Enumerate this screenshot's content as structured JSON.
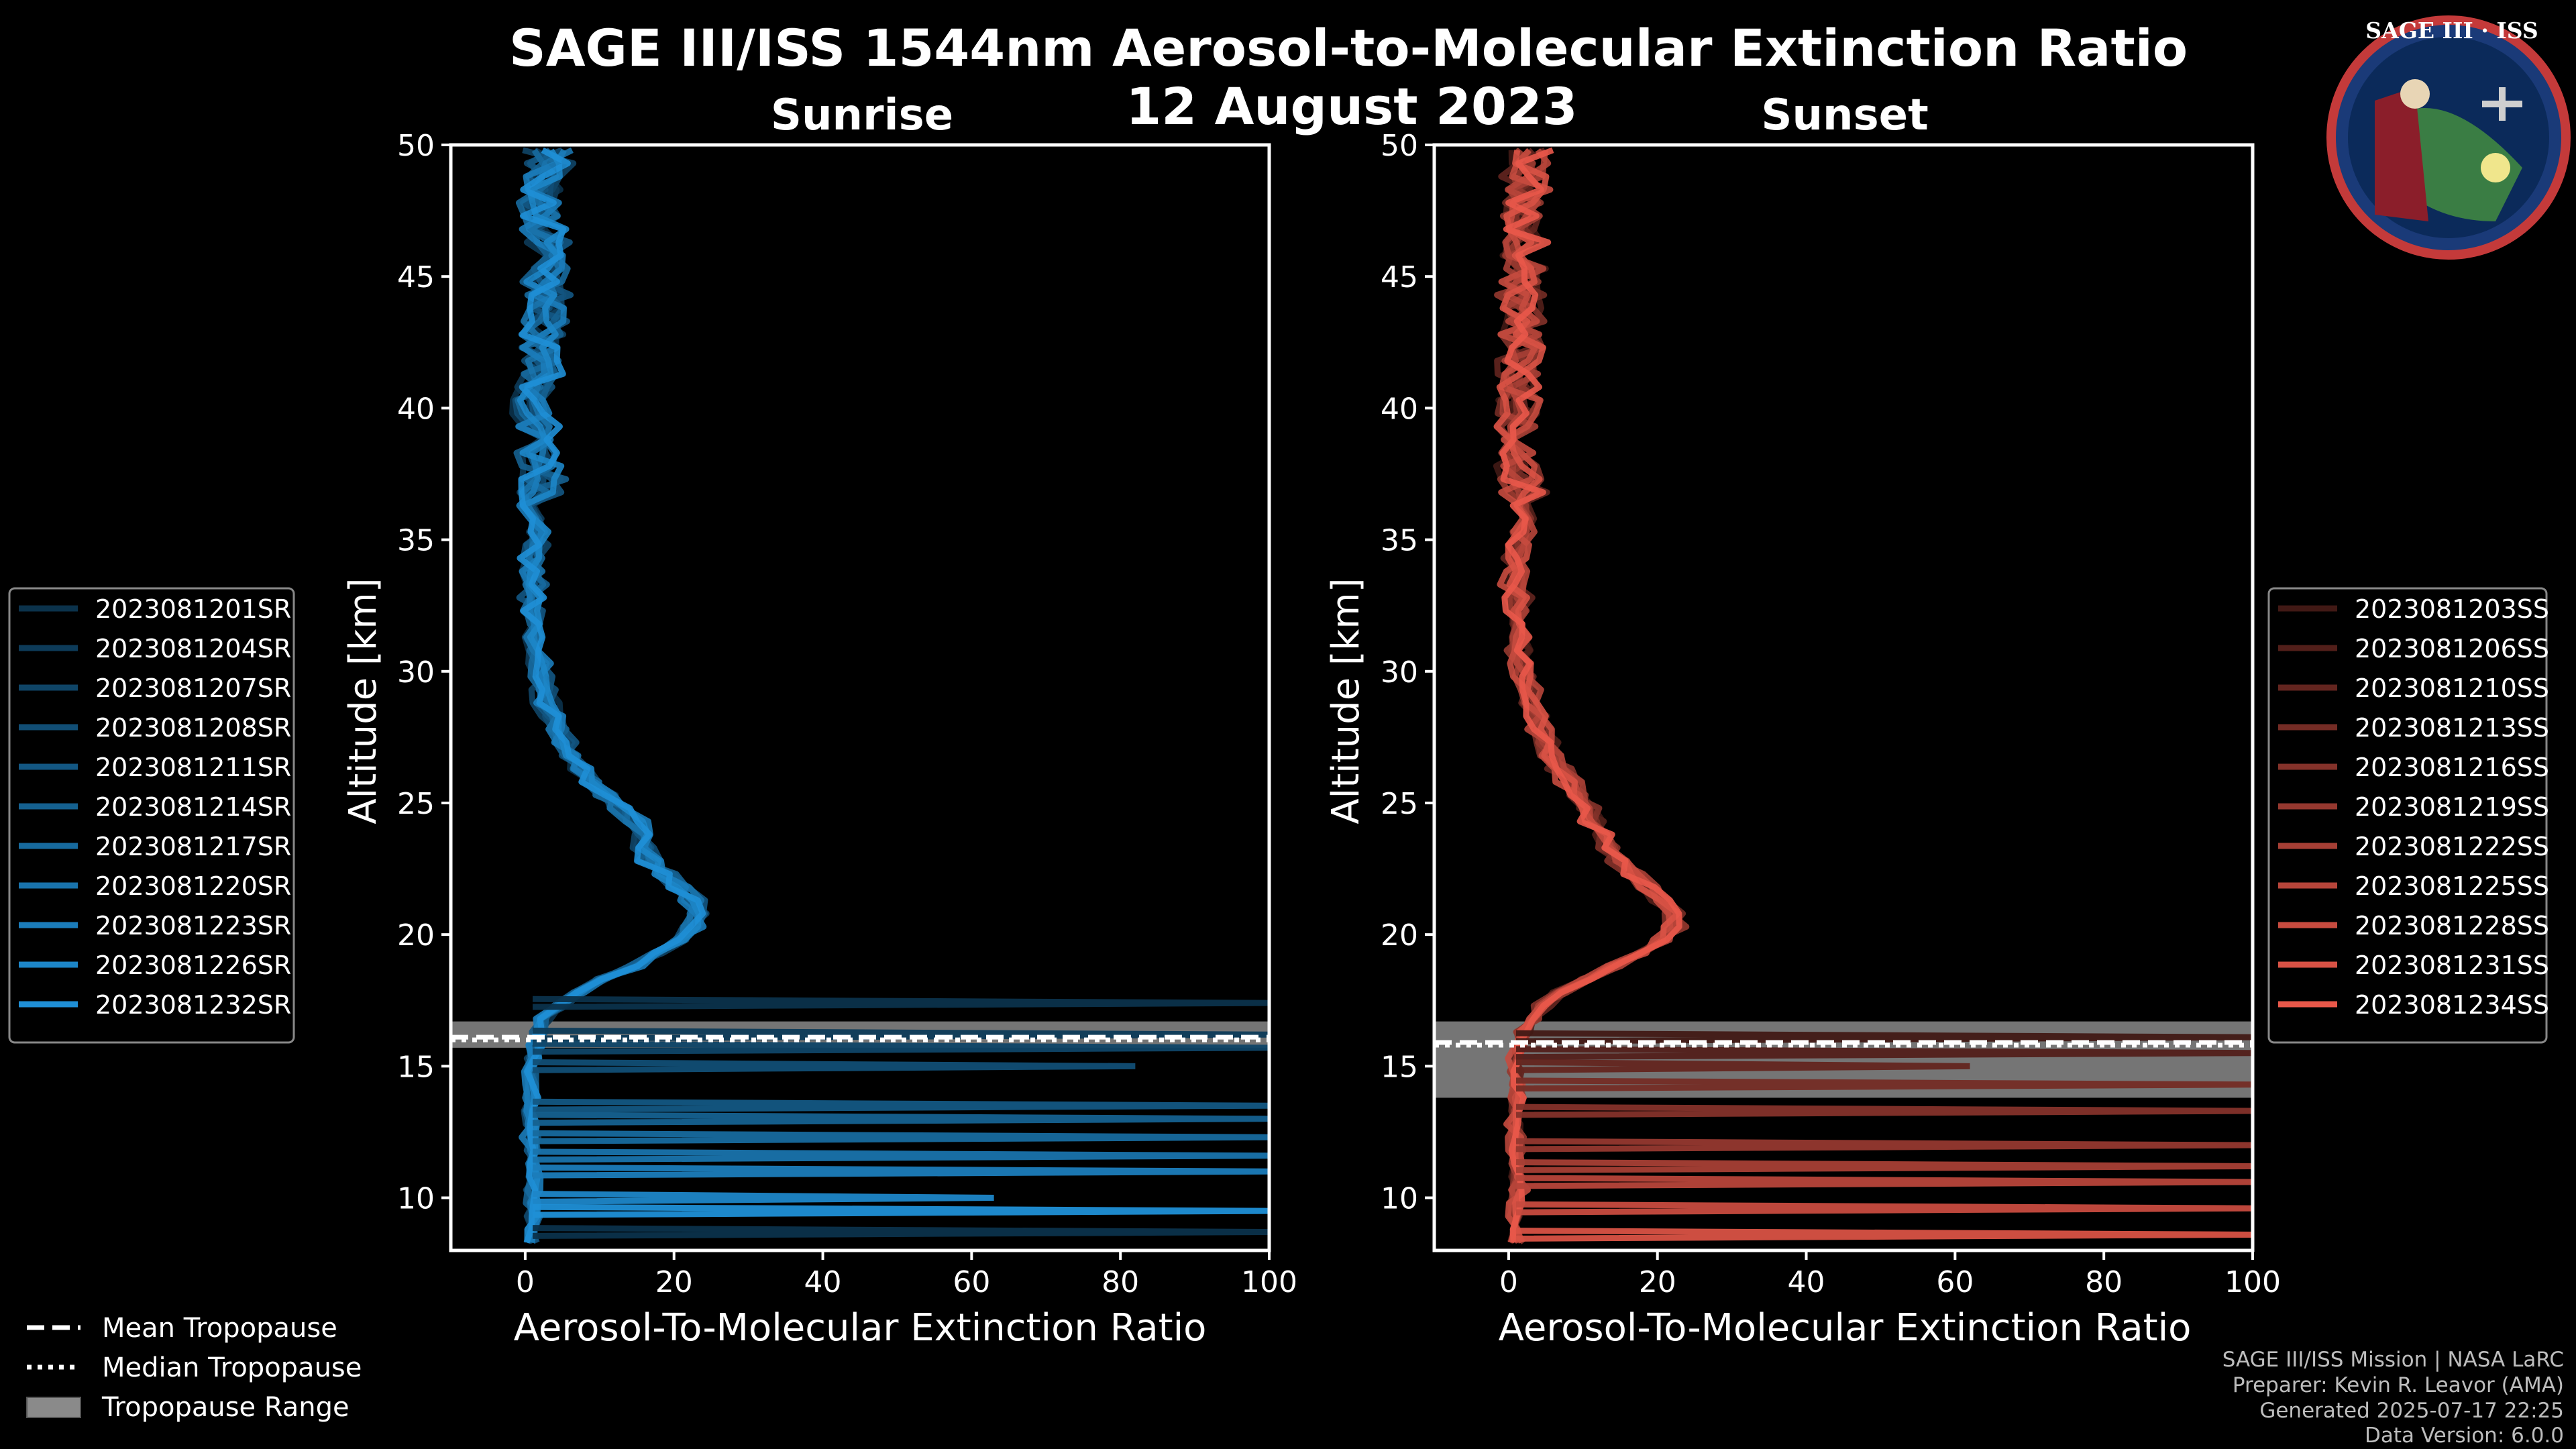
{
  "title_line1": "SAGE III/ISS 1544nm Aerosol-to-Molecular Extinction Ratio",
  "title_line2": "12 August 2023",
  "logo": {
    "text": "SAGE III · ISS",
    "icon": "mission-patch-icon"
  },
  "shared_legend": {
    "mean": "Mean Tropopause",
    "median": "Median Tropopause",
    "range": "Tropopause Range"
  },
  "credits": {
    "line1": "SAGE III/ISS Mission | NASA LaRC",
    "line2": "Preparer: Kevin R. Leavor (AMA)",
    "line3": "Generated 2025-07-17 22:25",
    "line4": "Data Version: 6.0.0"
  },
  "colors": {
    "sunrise": "#1f8fd6",
    "sunset": "#e9584a",
    "tropopause_band": "#8a8a8a"
  },
  "chart_data": [
    {
      "type": "line",
      "title": "Sunrise",
      "xlabel": "Aerosol-To-Molecular Extinction Ratio",
      "ylabel": "Altitude [km]",
      "xlim": [
        -10,
        100
      ],
      "ylim": [
        8,
        50
      ],
      "xticks": [
        0,
        20,
        40,
        60,
        80,
        100
      ],
      "yticks": [
        10,
        15,
        20,
        25,
        30,
        35,
        40,
        45,
        50
      ],
      "legend": [
        "2023081201SR",
        "2023081204SR",
        "2023081207SR",
        "2023081208SR",
        "2023081211SR",
        "2023081214SR",
        "2023081217SR",
        "2023081220SR",
        "2023081223SR",
        "2023081226SR",
        "2023081232SR"
      ],
      "tropopause": {
        "mean": 16.1,
        "median": 16.0,
        "range": [
          15.7,
          16.7
        ]
      },
      "profile": {
        "altitude": [
          8.5,
          9,
          10,
          11,
          12,
          13,
          14,
          15,
          16,
          17,
          18,
          19,
          20,
          21,
          22,
          23,
          24,
          25,
          26,
          27,
          28,
          29,
          30,
          32,
          34,
          36,
          38,
          40,
          42,
          44,
          46,
          48,
          49.5
        ],
        "ratio": [
          1,
          1,
          1,
          1,
          1,
          1,
          1,
          1,
          1.5,
          3,
          8,
          16,
          22,
          24,
          20,
          16,
          16,
          12,
          8,
          6,
          4,
          3,
          2,
          1,
          1,
          2,
          2,
          1,
          2,
          3,
          3,
          2,
          3
        ]
      },
      "spikes": [
        {
          "alt": 17.4,
          "x": 100
        },
        {
          "alt": 16.2,
          "x": 100
        },
        {
          "alt": 15.7,
          "x": 100
        },
        {
          "alt": 15.0,
          "x": 82
        },
        {
          "alt": 13.5,
          "x": 100
        },
        {
          "alt": 13.0,
          "x": 100
        },
        {
          "alt": 12.3,
          "x": 100
        },
        {
          "alt": 11.6,
          "x": 100
        },
        {
          "alt": 11.0,
          "x": 100
        },
        {
          "alt": 10.0,
          "x": 63
        },
        {
          "alt": 9.5,
          "x": 100
        },
        {
          "alt": 8.7,
          "x": 100
        }
      ]
    },
    {
      "type": "line",
      "title": "Sunset",
      "xlabel": "Aerosol-To-Molecular Extinction Ratio",
      "ylabel": "Altitude [km]",
      "xlim": [
        -10,
        100
      ],
      "ylim": [
        8,
        50
      ],
      "xticks": [
        0,
        20,
        40,
        60,
        80,
        100
      ],
      "yticks": [
        10,
        15,
        20,
        25,
        30,
        35,
        40,
        45,
        50
      ],
      "legend": [
        "2023081203SS",
        "2023081206SS",
        "2023081210SS",
        "2023081213SS",
        "2023081216SS",
        "2023081219SS",
        "2023081222SS",
        "2023081225SS",
        "2023081228SS",
        "2023081231SS",
        "2023081234SS"
      ],
      "tropopause": {
        "mean": 15.9,
        "median": 15.8,
        "range": [
          13.8,
          16.7
        ]
      },
      "profile": {
        "altitude": [
          8.5,
          9,
          10,
          11,
          12,
          13,
          14,
          15,
          16,
          17,
          18,
          19,
          20,
          21,
          22,
          23,
          24,
          25,
          26,
          27,
          28,
          29,
          30,
          32,
          34,
          36,
          38,
          40,
          42,
          44,
          46,
          48,
          49.5
        ],
        "ratio": [
          1,
          1,
          1,
          1,
          1,
          1,
          1,
          1,
          1.5,
          3,
          8,
          16,
          22,
          22,
          18,
          14,
          12,
          10,
          8,
          5,
          4,
          3,
          2,
          1,
          1,
          2,
          1,
          1,
          2,
          2,
          2,
          2,
          3
        ]
      },
      "spikes": [
        {
          "alt": 16.1,
          "x": 100
        },
        {
          "alt": 15.5,
          "x": 100
        },
        {
          "alt": 15.0,
          "x": 62
        },
        {
          "alt": 14.3,
          "x": 100
        },
        {
          "alt": 13.3,
          "x": 100
        },
        {
          "alt": 12.0,
          "x": 100
        },
        {
          "alt": 11.2,
          "x": 100
        },
        {
          "alt": 10.6,
          "x": 100
        },
        {
          "alt": 9.6,
          "x": 100
        },
        {
          "alt": 8.6,
          "x": 100
        }
      ]
    }
  ]
}
